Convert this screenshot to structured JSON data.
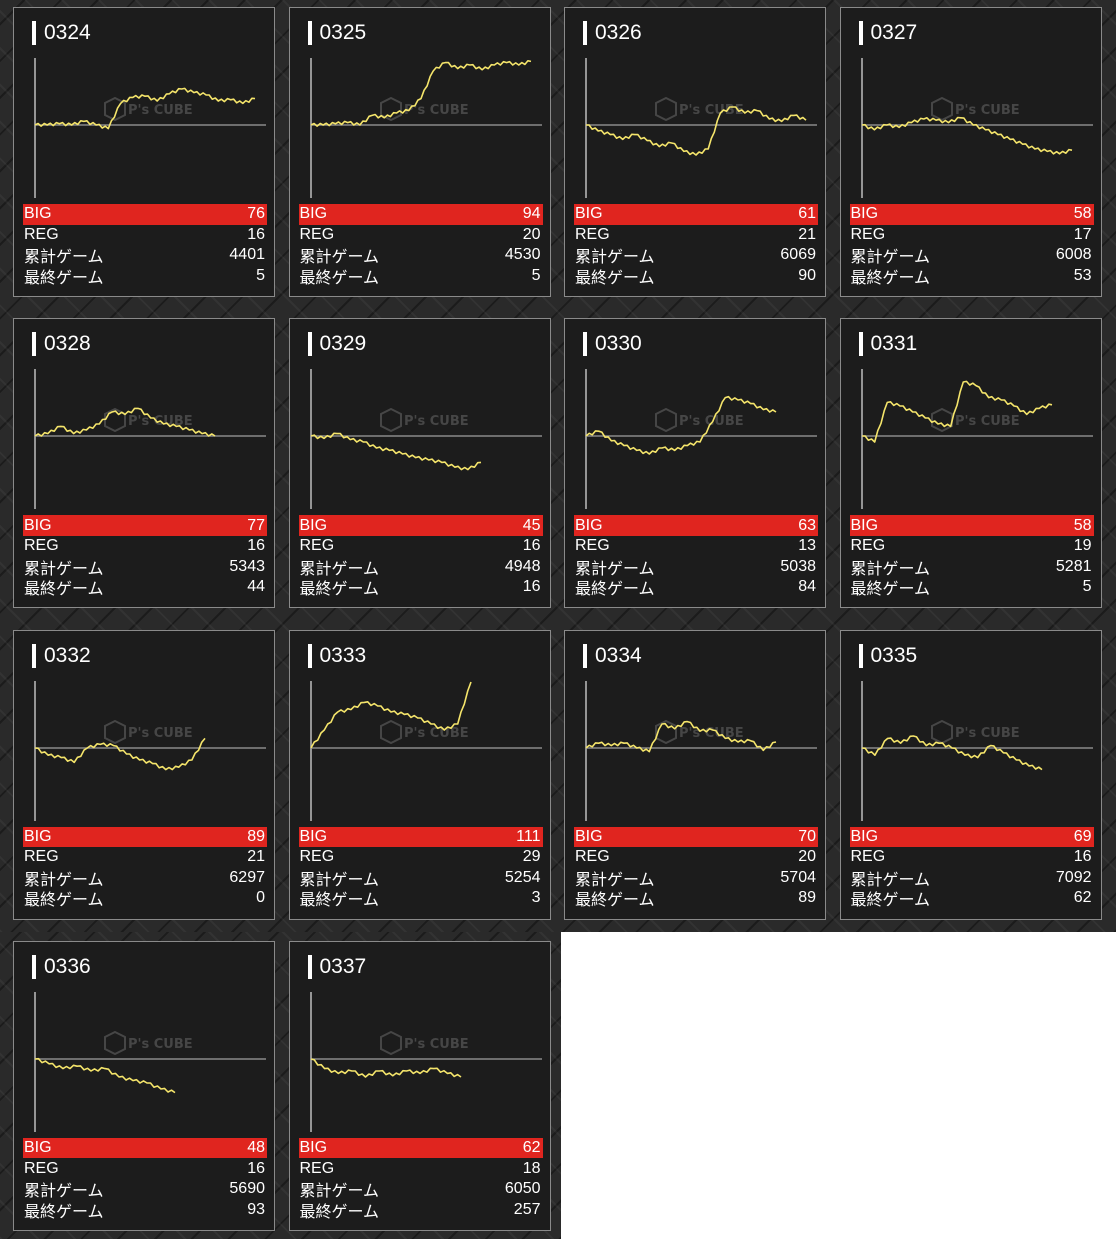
{
  "colors": {
    "big_bar": "#e0251f",
    "graph_line": "#f5e56b",
    "panel_bg": "#1c1c1c"
  },
  "labels": {
    "big": "BIG",
    "reg": "REG",
    "total_games": "累計ゲーム",
    "last_games": "最終ゲーム"
  },
  "watermark": {
    "logo": "P's CUBE"
  },
  "machines": [
    {
      "number": "0324",
      "big": "76",
      "reg": "16",
      "total_games": "4401",
      "last_games": "5",
      "trend": [
        0,
        0,
        0.01,
        0,
        0.03,
        0,
        -0.03,
        0.18,
        0.23,
        0.24,
        0.2,
        0.26,
        0.3,
        0.27,
        0.25,
        0.2,
        0.21,
        0.18,
        0.22
      ]
    },
    {
      "number": "0325",
      "big": "94",
      "reg": "20",
      "total_games": "4530",
      "last_games": "5",
      "trend": [
        0,
        0,
        0.01,
        0.02,
        0,
        0.08,
        0.06,
        0.1,
        0.12,
        0.22,
        0.45,
        0.52,
        0.47,
        0.5,
        0.46,
        0.5,
        0.52,
        0.5,
        0.53
      ]
    },
    {
      "number": "0326",
      "big": "61",
      "reg": "21",
      "total_games": "6069",
      "last_games": "90",
      "trend": [
        0,
        -0.05,
        -0.08,
        -0.12,
        -0.08,
        -0.13,
        -0.18,
        -0.15,
        -0.22,
        -0.25,
        -0.2,
        0.1,
        0.15,
        0.1,
        0.12,
        0.05,
        0.03,
        0.08,
        0.04
      ]
    },
    {
      "number": "0327",
      "big": "58",
      "reg": "17",
      "total_games": "6008",
      "last_games": "53",
      "trend": [
        0,
        -0.04,
        0,
        -0.02,
        0.02,
        0.05,
        0.04,
        0.02,
        0.06,
        0,
        -0.04,
        -0.08,
        -0.12,
        -0.16,
        -0.2,
        -0.22,
        -0.24,
        -0.21
      ]
    },
    {
      "number": "0328",
      "big": "77",
      "reg": "16",
      "total_games": "5343",
      "last_games": "44",
      "trend": [
        0,
        0.02,
        0.08,
        0.02,
        0.05,
        0.1,
        0.2,
        0.18,
        0.23,
        0.15,
        0.1,
        0.08,
        0.05,
        0.02,
        0
      ]
    },
    {
      "number": "0329",
      "big": "45",
      "reg": "16",
      "total_games": "4948",
      "last_games": "16",
      "trend": [
        0,
        -0.02,
        0.02,
        -0.03,
        -0.05,
        -0.1,
        -0.12,
        -0.15,
        -0.18,
        -0.2,
        -0.22,
        -0.26,
        -0.28,
        -0.22
      ]
    },
    {
      "number": "0330",
      "big": "63",
      "reg": "13",
      "total_games": "5038",
      "last_games": "84",
      "trend": [
        0,
        0.04,
        -0.04,
        -0.08,
        -0.12,
        -0.15,
        -0.1,
        -0.12,
        -0.08,
        -0.05,
        0.12,
        0.32,
        0.3,
        0.27,
        0.22,
        0.2
      ]
    },
    {
      "number": "0331",
      "big": "58",
      "reg": "19",
      "total_games": "5281",
      "last_games": "5",
      "trend": [
        0,
        -0.05,
        0.28,
        0.25,
        0.2,
        0.15,
        0.1,
        0.08,
        0.45,
        0.42,
        0.32,
        0.3,
        0.25,
        0.18,
        0.23,
        0.26
      ]
    },
    {
      "number": "0332",
      "big": "89",
      "reg": "21",
      "total_games": "6297",
      "last_games": "0",
      "trend": [
        0,
        -0.06,
        -0.08,
        -0.12,
        0,
        0.03,
        0.02,
        -0.05,
        -0.1,
        -0.13,
        -0.18,
        -0.16,
        -0.1,
        0.08
      ]
    },
    {
      "number": "0333",
      "big": "111",
      "reg": "29",
      "total_games": "5254",
      "last_games": "3",
      "trend": [
        0,
        0.15,
        0.3,
        0.32,
        0.38,
        0.35,
        0.3,
        0.28,
        0.25,
        0.2,
        0.15,
        0.2,
        0.55
      ]
    },
    {
      "number": "0334",
      "big": "70",
      "reg": "20",
      "total_games": "5704",
      "last_games": "89",
      "trend": [
        0,
        0.04,
        0.02,
        0.04,
        0,
        -0.03,
        0.2,
        0.16,
        0.22,
        0.14,
        0.15,
        0.08,
        0.05,
        0.06,
        -0.02,
        0.05
      ]
    },
    {
      "number": "0335",
      "big": "69",
      "reg": "16",
      "total_games": "7092",
      "last_games": "62",
      "trend": [
        0,
        -0.06,
        0.08,
        0.04,
        0.1,
        0.02,
        0.04,
        0,
        -0.06,
        -0.08,
        0.02,
        -0.04,
        -0.1,
        -0.15,
        -0.18
      ]
    },
    {
      "number": "0336",
      "big": "48",
      "reg": "16",
      "total_games": "5690",
      "last_games": "93",
      "trend": [
        0,
        -0.04,
        -0.08,
        -0.06,
        -0.1,
        -0.08,
        -0.15,
        -0.18,
        -0.2,
        -0.25,
        -0.28
      ]
    },
    {
      "number": "0337",
      "big": "62",
      "reg": "18",
      "total_games": "6050",
      "last_games": "257",
      "trend": [
        0,
        -0.08,
        -0.12,
        -0.1,
        -0.15,
        -0.1,
        -0.14,
        -0.1,
        -0.12,
        -0.08,
        -0.12,
        -0.15
      ]
    }
  ]
}
